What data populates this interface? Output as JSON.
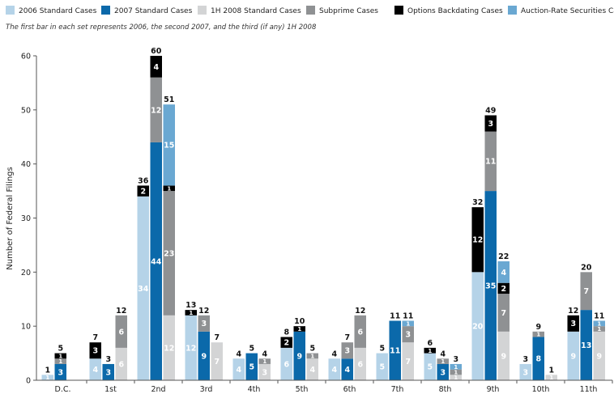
{
  "chart_data": {
    "type": "bar",
    "stacked": true,
    "note": "The first bar in each set represents 2006, the second 2007, and the third (if any) 1H 2008",
    "ylabel": "Number of Federal Filings",
    "ylim": [
      0,
      60
    ],
    "yticks": [
      0,
      10,
      20,
      30,
      40,
      50,
      60
    ],
    "legend_position": "top",
    "series": [
      {
        "key": "std2006",
        "name": "2006 Standard Cases",
        "color": "#b5d3e8",
        "label_color": "#ffffff"
      },
      {
        "key": "std2007",
        "name": "2007 Standard Cases",
        "color": "#0b69aa",
        "label_color": "#ffffff"
      },
      {
        "key": "std2008",
        "name": "1H 2008 Standard Cases",
        "color": "#d3d4d5",
        "label_color": "#ffffff"
      },
      {
        "key": "subprime",
        "name": "Subprime Cases",
        "color": "#8f9193",
        "label_color": "#ffffff"
      },
      {
        "key": "options",
        "name": "Options Backdating Cases",
        "color": "#000000",
        "label_color": "#ffffff"
      },
      {
        "key": "auction",
        "name": "Auction-Rate Securities Cases",
        "color": "#6aa8d2",
        "label_color": "#ffffff"
      }
    ],
    "categories": [
      {
        "name": "D.C.",
        "bars": [
          {
            "total": "1",
            "segments": [
              {
                "series": "std2006",
                "value": 1,
                "label": "1"
              }
            ]
          },
          {
            "total": "5",
            "segments": [
              {
                "series": "std2007",
                "value": 3,
                "label": "3"
              },
              {
                "series": "subprime",
                "value": 1,
                "label": "1"
              },
              {
                "series": "options",
                "value": 1,
                "label": "1"
              }
            ]
          }
        ]
      },
      {
        "name": "1st",
        "bars": [
          {
            "total": "7",
            "segments": [
              {
                "series": "std2006",
                "value": 4,
                "label": "4"
              },
              {
                "series": "options",
                "value": 3,
                "label": "3"
              }
            ]
          },
          {
            "total": "3",
            "segments": [
              {
                "series": "std2007",
                "value": 3,
                "label": "3"
              }
            ]
          },
          {
            "total": "12",
            "segments": [
              {
                "series": "std2008",
                "value": 6,
                "label": "6"
              },
              {
                "series": "subprime",
                "value": 6,
                "label": "6"
              }
            ]
          }
        ]
      },
      {
        "name": "2nd",
        "bars": [
          {
            "total": "36",
            "segments": [
              {
                "series": "std2006",
                "value": 34,
                "label": "34"
              },
              {
                "series": "options",
                "value": 2,
                "label": "2"
              }
            ]
          },
          {
            "total": "60",
            "segments": [
              {
                "series": "std2007",
                "value": 44,
                "label": "44"
              },
              {
                "series": "subprime",
                "value": 12,
                "label": "12"
              },
              {
                "series": "options",
                "value": 4,
                "label": "4"
              }
            ]
          },
          {
            "total": "51",
            "segments": [
              {
                "series": "std2008",
                "value": 12,
                "label": "12"
              },
              {
                "series": "subprime",
                "value": 23,
                "label": "23"
              },
              {
                "series": "options",
                "value": 1,
                "label": "1"
              },
              {
                "series": "auction",
                "value": 15,
                "label": "15"
              }
            ]
          }
        ]
      },
      {
        "name": "3rd",
        "bars": [
          {
            "total": "13",
            "segments": [
              {
                "series": "std2006",
                "value": 12,
                "label": "12"
              },
              {
                "series": "options",
                "value": 1,
                "label": "1"
              }
            ]
          },
          {
            "total": "12",
            "segments": [
              {
                "series": "std2007",
                "value": 9,
                "label": "9"
              },
              {
                "series": "subprime",
                "value": 3,
                "label": "3"
              }
            ]
          },
          {
            "total": "7",
            "segments": [
              {
                "series": "std2008",
                "value": 7,
                "label": "7"
              }
            ]
          }
        ]
      },
      {
        "name": "4th",
        "bars": [
          {
            "total": "4",
            "segments": [
              {
                "series": "std2006",
                "value": 4,
                "label": "4"
              }
            ]
          },
          {
            "total": "5",
            "segments": [
              {
                "series": "std2007",
                "value": 5,
                "label": "5"
              }
            ]
          },
          {
            "total": "4",
            "segments": [
              {
                "series": "std2008",
                "value": 3,
                "label": "3"
              },
              {
                "series": "subprime",
                "value": 1,
                "label": "1"
              }
            ]
          }
        ]
      },
      {
        "name": "5th",
        "bars": [
          {
            "total": "8",
            "segments": [
              {
                "series": "std2006",
                "value": 6,
                "label": "6"
              },
              {
                "series": "options",
                "value": 2,
                "label": "2"
              }
            ]
          },
          {
            "total": "10",
            "segments": [
              {
                "series": "std2007",
                "value": 9,
                "label": "9"
              },
              {
                "series": "options",
                "value": 1,
                "label": "1"
              }
            ]
          },
          {
            "total": "5",
            "segments": [
              {
                "series": "std2008",
                "value": 4,
                "label": "4"
              },
              {
                "series": "subprime",
                "value": 1,
                "label": "1"
              }
            ]
          }
        ]
      },
      {
        "name": "6th",
        "bars": [
          {
            "total": "4",
            "segments": [
              {
                "series": "std2006",
                "value": 4,
                "label": "4"
              }
            ]
          },
          {
            "total": "7",
            "segments": [
              {
                "series": "std2007",
                "value": 4,
                "label": "4"
              },
              {
                "series": "subprime",
                "value": 3,
                "label": "3"
              }
            ]
          },
          {
            "total": "12",
            "segments": [
              {
                "series": "std2008",
                "value": 6,
                "label": "6"
              },
              {
                "series": "subprime",
                "value": 6,
                "label": "6"
              }
            ]
          }
        ]
      },
      {
        "name": "7th",
        "bars": [
          {
            "total": "5",
            "segments": [
              {
                "series": "std2006",
                "value": 5,
                "label": "5"
              }
            ]
          },
          {
            "total": "11",
            "segments": [
              {
                "series": "std2007",
                "value": 11,
                "label": "11"
              }
            ]
          },
          {
            "total": "11",
            "segments": [
              {
                "series": "std2008",
                "value": 7,
                "label": "7"
              },
              {
                "series": "subprime",
                "value": 3,
                "label": "3"
              },
              {
                "series": "auction",
                "value": 1,
                "label": "1"
              }
            ]
          }
        ]
      },
      {
        "name": "8th",
        "bars": [
          {
            "total": "6",
            "segments": [
              {
                "series": "std2006",
                "value": 5,
                "label": "5"
              },
              {
                "series": "options",
                "value": 1,
                "label": "1"
              }
            ]
          },
          {
            "total": "4",
            "segments": [
              {
                "series": "std2007",
                "value": 3,
                "label": "3"
              },
              {
                "series": "subprime",
                "value": 1,
                "label": "1"
              }
            ]
          },
          {
            "total": "3",
            "segments": [
              {
                "series": "std2008",
                "value": 1,
                "label": "1"
              },
              {
                "series": "subprime",
                "value": 1,
                "label": "1"
              },
              {
                "series": "auction",
                "value": 1,
                "label": "1"
              }
            ]
          }
        ]
      },
      {
        "name": "9th",
        "bars": [
          {
            "total": "32",
            "segments": [
              {
                "series": "std2006",
                "value": 20,
                "label": "20"
              },
              {
                "series": "options",
                "value": 12,
                "label": "12"
              }
            ]
          },
          {
            "total": "49",
            "segments": [
              {
                "series": "std2007",
                "value": 35,
                "label": "35"
              },
              {
                "series": "subprime",
                "value": 11,
                "label": "11"
              },
              {
                "series": "options",
                "value": 3,
                "label": "3"
              }
            ]
          },
          {
            "total": "22",
            "segments": [
              {
                "series": "std2008",
                "value": 9,
                "label": "9"
              },
              {
                "series": "subprime",
                "value": 7,
                "label": "7"
              },
              {
                "series": "options",
                "value": 2,
                "label": "2"
              },
              {
                "series": "auction",
                "value": 4,
                "label": "4"
              }
            ]
          }
        ]
      },
      {
        "name": "10th",
        "bars": [
          {
            "total": "3",
            "segments": [
              {
                "series": "std2006",
                "value": 3,
                "label": "3"
              }
            ]
          },
          {
            "total": "9",
            "segments": [
              {
                "series": "std2007",
                "value": 8,
                "label": "8"
              },
              {
                "series": "subprime",
                "value": 1,
                "label": "1"
              }
            ]
          },
          {
            "total": "1",
            "segments": [
              {
                "series": "std2008",
                "value": 1,
                "label": "1"
              }
            ]
          }
        ]
      },
      {
        "name": "11th",
        "bars": [
          {
            "total": "12",
            "segments": [
              {
                "series": "std2006",
                "value": 9,
                "label": "9"
              },
              {
                "series": "options",
                "value": 3,
                "label": "3"
              }
            ]
          },
          {
            "total": "20",
            "segments": [
              {
                "series": "std2007",
                "value": 13,
                "label": "13"
              },
              {
                "series": "subprime",
                "value": 7,
                "label": "7"
              }
            ]
          },
          {
            "total": "11",
            "segments": [
              {
                "series": "std2008",
                "value": 9,
                "label": "9"
              },
              {
                "series": "subprime",
                "value": 1,
                "label": "1"
              },
              {
                "series": "auction",
                "value": 1,
                "label": "1"
              }
            ]
          }
        ]
      }
    ]
  }
}
